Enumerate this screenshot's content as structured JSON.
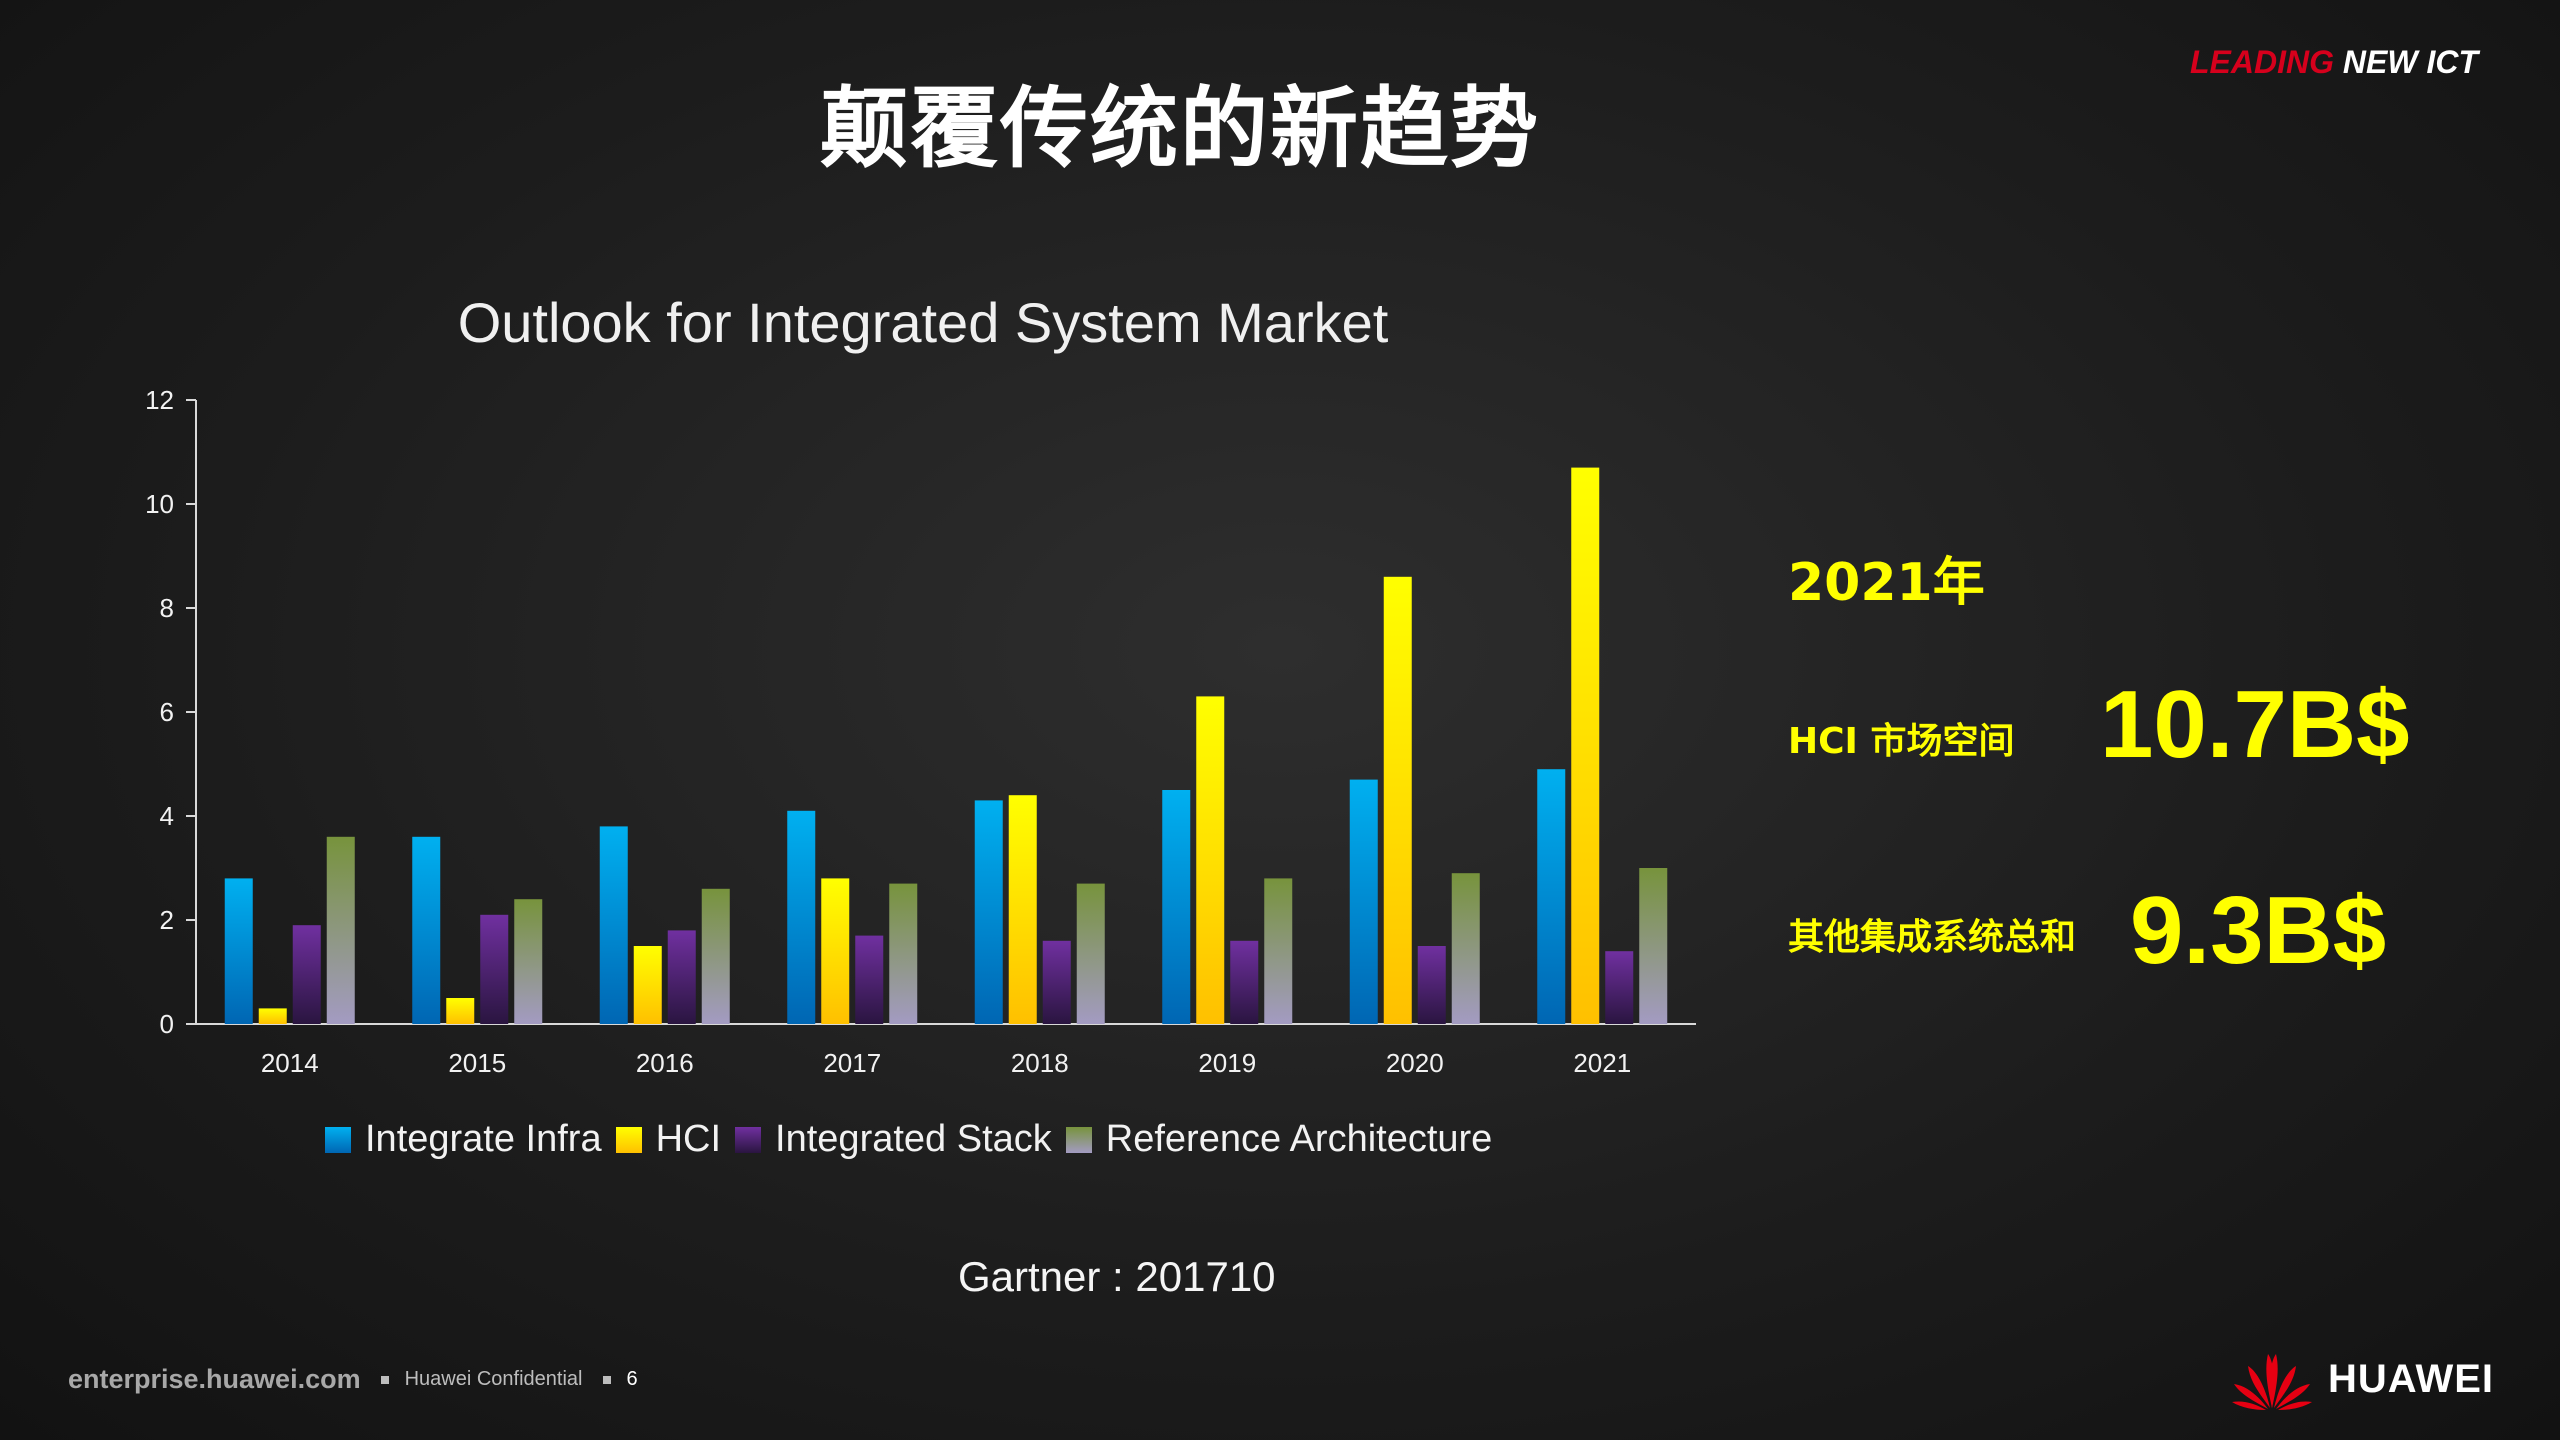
{
  "slide": {
    "title": "颠覆传统的新趋势",
    "tagline_red": "LEADING",
    "tagline_white": " NEW ICT"
  },
  "chart_data": {
    "type": "bar",
    "title": "Outlook for Integrated System Market",
    "categories": [
      "2014",
      "2015",
      "2016",
      "2017",
      "2018",
      "2019",
      "2020",
      "2021"
    ],
    "series": [
      {
        "name": "Integrate Infra",
        "values": [
          2.8,
          3.6,
          3.8,
          4.1,
          4.3,
          4.5,
          4.7,
          4.9
        ],
        "color_top": "#00b0f0",
        "color_bottom": "#0066b3"
      },
      {
        "name": "HCI",
        "values": [
          0.3,
          0.5,
          1.5,
          2.8,
          4.4,
          6.3,
          8.6,
          10.7
        ],
        "color_top": "#ffff00",
        "color_bottom": "#ffc000"
      },
      {
        "name": "Integrated Stack",
        "values": [
          1.9,
          2.1,
          1.8,
          1.7,
          1.6,
          1.6,
          1.5,
          1.4
        ],
        "color_top": "#7030a0",
        "color_bottom": "#2a1540"
      },
      {
        "name": "Reference Architecture",
        "values": [
          3.6,
          2.4,
          2.6,
          2.7,
          2.7,
          2.8,
          2.9,
          3.0
        ],
        "color_top": "#77933c",
        "color_bottom": "#a39bc2"
      }
    ],
    "ylim": [
      0,
      12
    ],
    "yticks": [
      "0",
      "2",
      "4",
      "6",
      "8",
      "10",
      "12"
    ],
    "grid": false,
    "legend_position": "bottom"
  },
  "source_note": "Gartner : 201710",
  "highlight": {
    "year": "2021年",
    "hci_label": "HCI 市场空间",
    "hci_value": "10.7B$",
    "other_label": "其他集成系统总和",
    "other_value": "9.3B$"
  },
  "footer": {
    "domain": "enterprise.huawei.com",
    "confidential": "Huawei Confidential",
    "page": "6",
    "brand": "HUAWEI"
  },
  "icons": {
    "brand_logo": "huawei-petal-logo-icon"
  }
}
